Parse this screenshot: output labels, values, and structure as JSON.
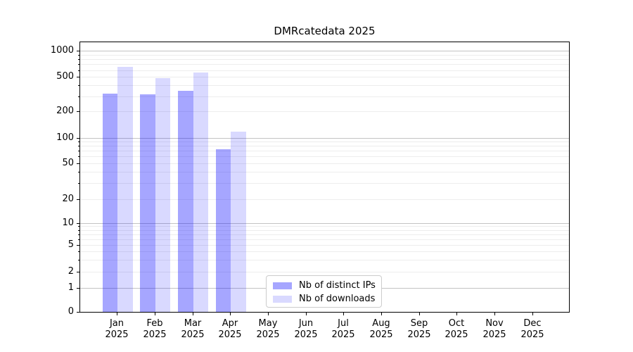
{
  "chart_data": {
    "type": "bar",
    "title": "DMRcatedata 2025",
    "categories": [
      "Jan",
      "Feb",
      "Mar",
      "Apr",
      "May",
      "Jun",
      "Jul",
      "Aug",
      "Sep",
      "Oct",
      "Nov",
      "Dec"
    ],
    "year_label": "2025",
    "series": [
      {
        "name": "Nb of distinct IPs",
        "color": "#0000ff",
        "alpha": 0.35,
        "values": [
          320,
          313,
          348,
          73,
          0,
          0,
          0,
          0,
          0,
          0,
          0,
          0
        ]
      },
      {
        "name": "Nb of downloads",
        "color": "#0000ff",
        "alpha": 0.15,
        "values": [
          650,
          485,
          565,
          118,
          0,
          0,
          0,
          0,
          0,
          0,
          0,
          0
        ]
      }
    ],
    "y_axis": {
      "scale": "symlog",
      "tick_labels": [
        0,
        1,
        2,
        5,
        10,
        20,
        50,
        100,
        200,
        500,
        1000
      ]
    },
    "grid": true,
    "legend_position": "lower center",
    "colors": {
      "major_grid": "#c3c3c3",
      "minor_grid": "#ededed",
      "axis": "#000000",
      "legend_border": "#cccccc"
    }
  }
}
